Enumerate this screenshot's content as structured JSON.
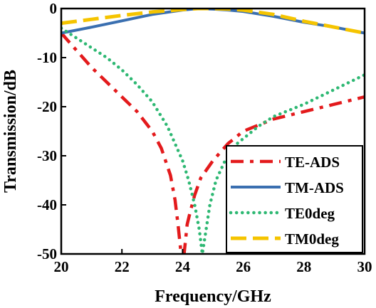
{
  "chart_data": {
    "type": "line",
    "title": "",
    "xlabel": "Frequency/GHz",
    "ylabel": "Transmission/dB",
    "xlim": [
      20,
      30
    ],
    "ylim": [
      -50,
      0
    ],
    "x_ticks": [
      "20",
      "22",
      "24",
      "26",
      "28",
      "30"
    ],
    "y_ticks": [
      "0",
      "-10",
      "-20",
      "-30",
      "-40",
      "-50"
    ],
    "grid": false,
    "legend_position": "bottom-right",
    "series": [
      {
        "name": "TE-ADS",
        "color": "#e31a1c",
        "dash": "dashdot",
        "x": [
          20,
          20.5,
          21,
          21.5,
          22,
          22.5,
          23,
          23.3,
          23.6,
          23.75,
          23.85,
          23.95,
          24.05,
          24.1,
          24.15,
          24.25,
          24.4,
          24.6,
          25,
          25.5,
          26,
          27,
          28,
          29,
          30
        ],
        "y": [
          -5,
          -8.5,
          -12,
          -15,
          -18,
          -21,
          -25,
          -28.5,
          -34,
          -39,
          -44,
          -50,
          -50,
          -47,
          -44,
          -41.5,
          -38,
          -34.5,
          -31,
          -27.5,
          -25,
          -22.5,
          -21,
          -19.5,
          -18
        ]
      },
      {
        "name": "TM-ADS",
        "color": "#3a6fb0",
        "dash": "solid",
        "x": [
          20,
          21,
          22,
          23,
          24,
          24.5,
          25,
          25.5,
          26,
          27,
          28,
          29,
          30
        ],
        "y": [
          -5,
          -3.8,
          -2.5,
          -1.2,
          -0.3,
          0,
          -0.1,
          -0.3,
          -0.6,
          -1.6,
          -2.8,
          -3.8,
          -5
        ]
      },
      {
        "name": "TE0deg",
        "color": "#2eb873",
        "dash": "dotted",
        "x": [
          20,
          20.5,
          21,
          21.5,
          22,
          22.5,
          23,
          23.5,
          24,
          24.2,
          24.4,
          24.55,
          24.65,
          24.75,
          24.9,
          25.1,
          25.4,
          25.8,
          26.5,
          27,
          28,
          29,
          30
        ],
        "y": [
          -4,
          -6,
          -8,
          -10,
          -12.5,
          -15.5,
          -19,
          -24,
          -31,
          -35,
          -40,
          -45,
          -50,
          -46,
          -40,
          -35,
          -31,
          -27.5,
          -24,
          -22,
          -19.5,
          -16.5,
          -13.5
        ]
      },
      {
        "name": "TM0deg",
        "color": "#f5c400",
        "dash": "longdash",
        "x": [
          20,
          21,
          22,
          23,
          24,
          24.5,
          25,
          25.5,
          26,
          27,
          28,
          29,
          30
        ],
        "y": [
          -3,
          -2.2,
          -1.4,
          -0.7,
          -0.2,
          0,
          0,
          -0.1,
          -0.3,
          -1.2,
          -2.6,
          -3.8,
          -5
        ]
      }
    ]
  }
}
